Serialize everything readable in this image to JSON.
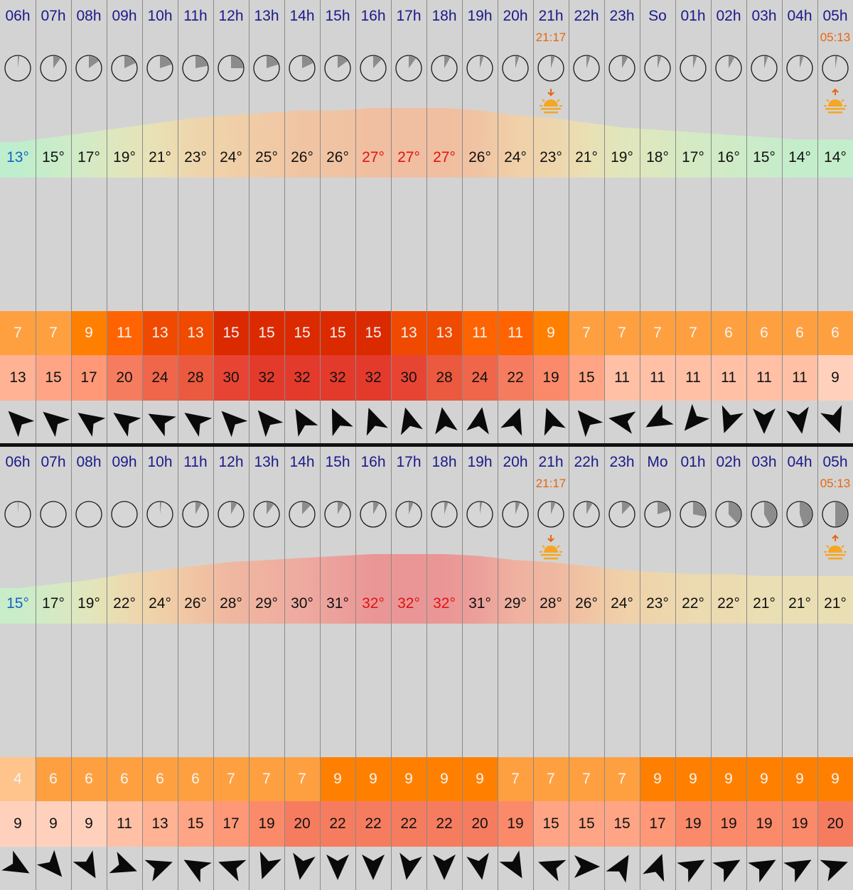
{
  "days": [
    {
      "hours": [
        "06h",
        "07h",
        "08h",
        "09h",
        "10h",
        "11h",
        "12h",
        "13h",
        "14h",
        "15h",
        "16h",
        "17h",
        "18h",
        "19h",
        "20h",
        "21h",
        "22h",
        "23h",
        "So",
        "01h",
        "02h",
        "03h",
        "04h",
        "05h"
      ],
      "sunset_time": "21:17",
      "sunrise_time": "05:13",
      "clock_fill": [
        0.02,
        0.1,
        0.15,
        0.18,
        0.2,
        0.22,
        0.25,
        0.2,
        0.18,
        0.15,
        0.12,
        0.1,
        0.08,
        0.05,
        0.05,
        0.05,
        0.05,
        0.08,
        0.05,
        0.05,
        0.08,
        0.05,
        0.05,
        0.03
      ],
      "temps": [
        "13°",
        "15°",
        "17°",
        "19°",
        "21°",
        "23°",
        "24°",
        "25°",
        "26°",
        "26°",
        "27°",
        "27°",
        "27°",
        "26°",
        "24°",
        "23°",
        "21°",
        "19°",
        "18°",
        "17°",
        "16°",
        "15°",
        "14°",
        "14°"
      ],
      "wind": [
        "7",
        "7",
        "9",
        "11",
        "13",
        "13",
        "15",
        "15",
        "15",
        "15",
        "15",
        "13",
        "13",
        "11",
        "11",
        "9",
        "7",
        "7",
        "7",
        "7",
        "6",
        "6",
        "6",
        "6"
      ],
      "gusts": [
        "13",
        "15",
        "17",
        "20",
        "24",
        "28",
        "30",
        "32",
        "32",
        "32",
        "32",
        "30",
        "28",
        "24",
        "22",
        "19",
        "15",
        "11",
        "11",
        "11",
        "11",
        "11",
        "11",
        "9"
      ],
      "wind_dir_deg": [
        315,
        310,
        305,
        305,
        300,
        305,
        315,
        320,
        330,
        335,
        340,
        345,
        350,
        10,
        20,
        340,
        320,
        280,
        240,
        220,
        200,
        180,
        170,
        160
      ]
    },
    {
      "hours": [
        "06h",
        "07h",
        "08h",
        "09h",
        "10h",
        "11h",
        "12h",
        "13h",
        "14h",
        "15h",
        "16h",
        "17h",
        "18h",
        "19h",
        "20h",
        "21h",
        "22h",
        "23h",
        "Mo",
        "01h",
        "02h",
        "03h",
        "04h",
        "05h"
      ],
      "sunset_time": "21:17",
      "sunrise_time": "05:13",
      "clock_fill": [
        0.01,
        0.0,
        0.0,
        0.0,
        0.02,
        0.08,
        0.08,
        0.1,
        0.12,
        0.08,
        0.08,
        0.06,
        0.05,
        0.03,
        0.06,
        0.06,
        0.08,
        0.12,
        0.2,
        0.28,
        0.38,
        0.42,
        0.45,
        0.5
      ],
      "temps": [
        "15°",
        "17°",
        "19°",
        "22°",
        "24°",
        "26°",
        "28°",
        "29°",
        "30°",
        "31°",
        "32°",
        "32°",
        "32°",
        "31°",
        "29°",
        "28°",
        "26°",
        "24°",
        "23°",
        "22°",
        "22°",
        "21°",
        "21°",
        "21°"
      ],
      "wind": [
        "4",
        "6",
        "6",
        "6",
        "6",
        "6",
        "7",
        "7",
        "7",
        "9",
        "9",
        "9",
        "9",
        "9",
        "7",
        "7",
        "7",
        "7",
        "9",
        "9",
        "9",
        "9",
        "9",
        "9"
      ],
      "gusts": [
        "9",
        "9",
        "9",
        "11",
        "13",
        "15",
        "17",
        "19",
        "20",
        "22",
        "22",
        "22",
        "22",
        "20",
        "19",
        "15",
        "15",
        "15",
        "17",
        "19",
        "19",
        "19",
        "19",
        "20"
      ],
      "wind_dir_deg": [
        120,
        140,
        150,
        110,
        70,
        300,
        290,
        200,
        190,
        180,
        180,
        190,
        180,
        170,
        150,
        290,
        90,
        30,
        20,
        60,
        60,
        60,
        60,
        70
      ]
    }
  ],
  "colors": {
    "hour_label": "#1a1a8a",
    "sun_time": "#e8650c",
    "temp_cold": "#1565c0",
    "temp_hot": "#e31212",
    "background": "#d3d3d3"
  },
  "icons": {
    "clock": "clock-icon",
    "sunset": "sunset-icon",
    "sunrise": "sunrise-icon",
    "wind_arrow": "wind-direction-arrow-icon"
  }
}
